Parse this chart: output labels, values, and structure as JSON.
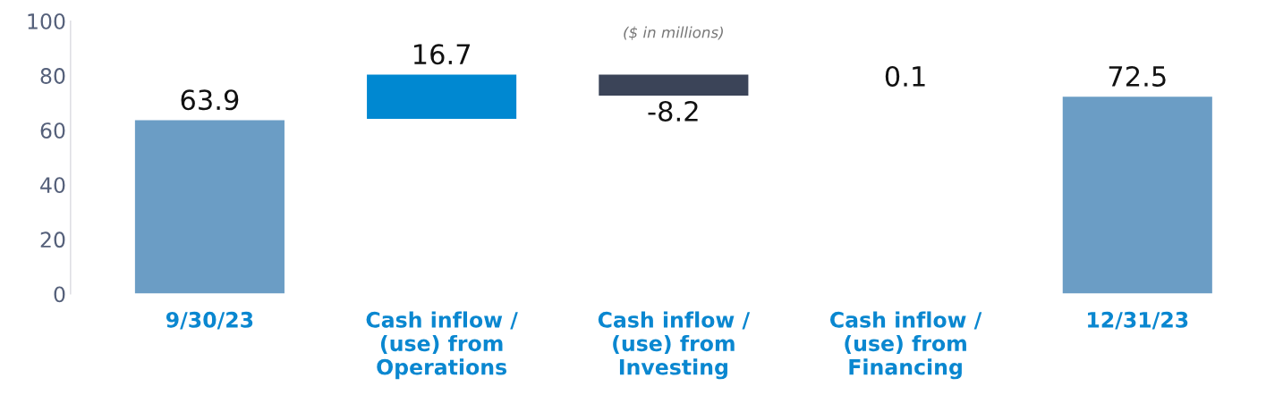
{
  "chart_data": {
    "type": "bar",
    "categories": [
      "9/30/23",
      "Cash inflow /\n(use) from\nOperations",
      "Cash inflow /\n(use) from\nInvesting",
      "Cash inflow /\n(use) from\nFinancing",
      "12/31/23"
    ],
    "values": [
      63.9,
      16.7,
      -8.2,
      0.1,
      72.5
    ],
    "base": [
      0,
      63.9,
      80.6,
      72.4,
      0
    ],
    "colors": [
      "#6b9dc5",
      "#0088d1",
      "#3b4458",
      "#7ec8e8",
      "#6b9dc5"
    ],
    "data_labels": true,
    "ylim": [
      0,
      100
    ],
    "yticks": [
      0,
      20,
      40,
      60,
      80,
      100
    ],
    "grid": false,
    "legend": false,
    "annotations": [
      "($ in millions)"
    ]
  }
}
